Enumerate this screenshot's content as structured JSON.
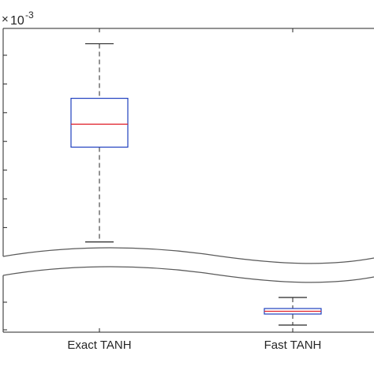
{
  "chart_data": {
    "type": "boxplot",
    "title": "",
    "xlabel": "",
    "ylabel": "",
    "y_scale_label": {
      "times": "×",
      "base": "10",
      "exponent": "-3"
    },
    "categories": [
      "Exact TANH",
      "Fast TANH"
    ],
    "boxes": [
      {
        "category": "Exact TANH",
        "whisker_low": 13.5,
        "q1": 16.8,
        "median": 17.6,
        "q3": 18.5,
        "whisker_high": 20.4
      },
      {
        "category": "Fast TANH",
        "whisker_low": 0.2,
        "q1": 0.6,
        "median": 0.7,
        "q3": 0.8,
        "whisker_high": 1.2
      }
    ],
    "y_axis_break": {
      "lower_range": [
        0,
        1.5
      ],
      "upper_range": [
        13,
        21
      ]
    },
    "colors": {
      "box": "#1f3fbf",
      "median": "#e0202a",
      "whisker": "#262626",
      "axis": "#262626"
    },
    "grid": false,
    "legend": "none"
  }
}
